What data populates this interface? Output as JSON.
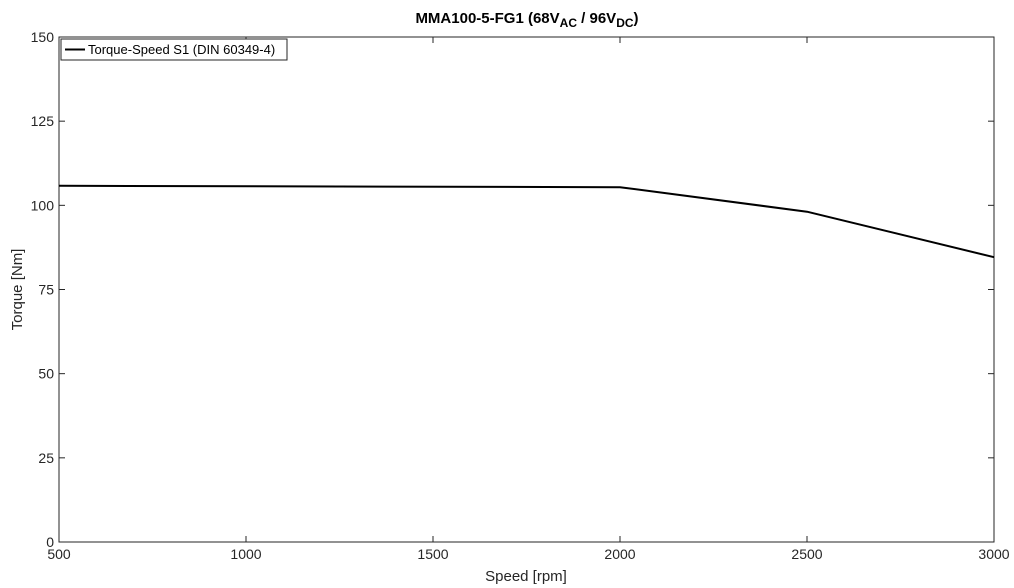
{
  "chart_data": {
    "type": "line",
    "title": {
      "prefix": "MMA100-5-FG1 (68V",
      "sub1": "AC",
      "middle": " / 96V",
      "sub2": "DC",
      "suffix": ")"
    },
    "xlabel": "Speed [rpm]",
    "ylabel": "Torque [Nm]",
    "xlim": [
      500,
      3000
    ],
    "ylim": [
      0,
      150
    ],
    "xticks": [
      500,
      1000,
      1500,
      2000,
      2500,
      3000
    ],
    "yticks": [
      0,
      25,
      50,
      75,
      100,
      125,
      150
    ],
    "grid": false,
    "legend_position": "top-left",
    "series": [
      {
        "name": "Torque-Speed S1 (DIN 60349-4)",
        "color": "#000000",
        "x": [
          500,
          2000,
          2500,
          3000
        ],
        "y": [
          105.8,
          105.4,
          98.1,
          84.6
        ]
      }
    ]
  }
}
